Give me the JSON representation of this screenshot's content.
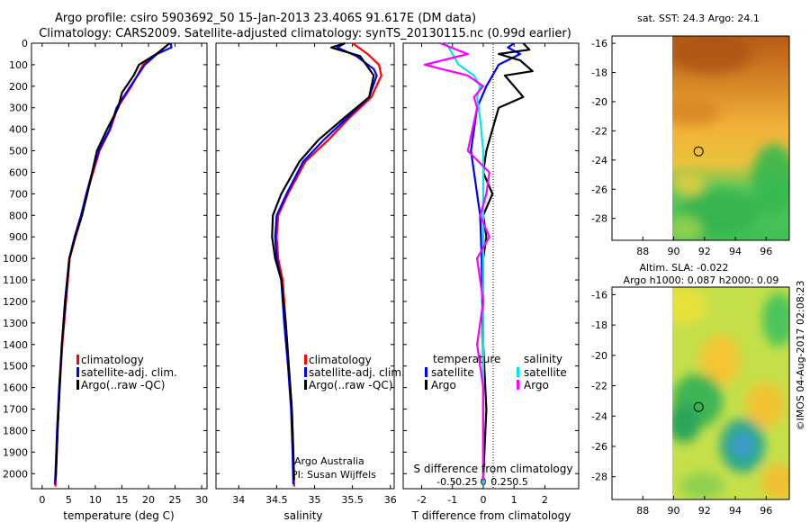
{
  "header": {
    "line1": "Argo profile: csiro 5903692_50 15-Jan-2013 23.406S 91.617E (DM data)",
    "line2": "Climatology: CARS2009. Satellite-adjusted climatology: synTS_20130115.nc (0.99d earlier)"
  },
  "credit": "©IMOS 04-Aug-2017 02:08:23",
  "colors": {
    "climatology": "#ff0000",
    "satellite": "#0000ff",
    "argo": "#000000",
    "sat_salinity": "#00e5ee",
    "argo_salinity": "#ff00ff"
  },
  "chart_data": [
    {
      "id": "temperature",
      "type": "line",
      "xlabel": "temperature (deg C)",
      "ylabel": "",
      "xlim": [
        -2,
        31
      ],
      "ylim": [
        2070,
        0
      ],
      "xticks": [
        0,
        5,
        10,
        15,
        20,
        25,
        30
      ],
      "yticks": [
        0,
        100,
        200,
        300,
        400,
        500,
        600,
        700,
        800,
        900,
        1000,
        1100,
        1200,
        1300,
        1400,
        1500,
        1600,
        1700,
        1800,
        1900,
        2000
      ],
      "legend": [
        "climatology",
        "satellite-adj. clim.",
        "Argo(..raw -QC)"
      ],
      "series": [
        {
          "name": "climatology",
          "color": "#ff0000",
          "points": [
            [
              23.8,
              0
            ],
            [
              23.5,
              10
            ],
            [
              21.5,
              50
            ],
            [
              19,
              100
            ],
            [
              16.8,
              200
            ],
            [
              14.2,
              300
            ],
            [
              12.8,
              400
            ],
            [
              10.8,
              500
            ],
            [
              9.6,
              600
            ],
            [
              8.4,
              700
            ],
            [
              7.5,
              800
            ],
            [
              6.3,
              900
            ],
            [
              5.2,
              1000
            ],
            [
              4.5,
              1200
            ],
            [
              3.8,
              1400
            ],
            [
              3.3,
              1600
            ],
            [
              2.9,
              1800
            ],
            [
              2.6,
              2000
            ],
            [
              2.5,
              2060
            ]
          ]
        },
        {
          "name": "satellite-adj. clim.",
          "color": "#0000ff",
          "points": [
            [
              24.2,
              0
            ],
            [
              24.3,
              20
            ],
            [
              21.6,
              50
            ],
            [
              19.3,
              100
            ],
            [
              16.6,
              200
            ],
            [
              14,
              300
            ],
            [
              12.7,
              400
            ],
            [
              10.6,
              500
            ],
            [
              9.4,
              600
            ],
            [
              8.3,
              700
            ],
            [
              7.3,
              800
            ],
            [
              6.1,
              900
            ],
            [
              5.1,
              1000
            ],
            [
              4.4,
              1200
            ],
            [
              3.7,
              1400
            ],
            [
              3.2,
              1600
            ],
            [
              2.8,
              1800
            ],
            [
              2.5,
              2000
            ],
            [
              2.4,
              2050
            ]
          ]
        },
        {
          "name": "Argo(..raw -QC)",
          "color": "#000000",
          "points": [
            [
              24,
              0
            ],
            [
              23,
              20
            ],
            [
              21.5,
              50
            ],
            [
              18.2,
              100
            ],
            [
              17.2,
              150
            ],
            [
              15,
              230
            ],
            [
              14.3,
              300
            ],
            [
              12.2,
              400
            ],
            [
              10.3,
              500
            ],
            [
              9.4,
              600
            ],
            [
              8.5,
              700
            ],
            [
              7.5,
              800
            ],
            [
              6.2,
              900
            ],
            [
              5.1,
              1000
            ],
            [
              4.3,
              1200
            ],
            [
              3.7,
              1400
            ],
            [
              3.3,
              1600
            ],
            [
              2.9,
              1800
            ],
            [
              2.6,
              2000
            ],
            [
              2.5,
              2030
            ]
          ]
        }
      ]
    },
    {
      "id": "salinity",
      "type": "line",
      "xlabel": "salinity",
      "ylabel": "",
      "xlim": [
        33.7,
        36.05
      ],
      "ylim": [
        2070,
        0
      ],
      "xticks": [
        34,
        34.5,
        35,
        35.5,
        36
      ],
      "yticks": [],
      "legend": [
        "climatology",
        "satellite-adj. clim.",
        "Argo(..raw -QC)"
      ],
      "series": [
        {
          "name": "climatology",
          "color": "#ff0000",
          "points": [
            [
              35.5,
              0
            ],
            [
              35.7,
              50
            ],
            [
              35.85,
              100
            ],
            [
              35.88,
              150
            ],
            [
              35.75,
              250
            ],
            [
              35.45,
              350
            ],
            [
              35.18,
              450
            ],
            [
              34.88,
              550
            ],
            [
              34.65,
              700
            ],
            [
              34.52,
              800
            ],
            [
              34.5,
              900
            ],
            [
              34.52,
              1000
            ],
            [
              34.58,
              1100
            ],
            [
              34.62,
              1300
            ],
            [
              34.66,
              1500
            ],
            [
              34.7,
              1700
            ],
            [
              34.72,
              1900
            ],
            [
              34.73,
              2060
            ]
          ]
        },
        {
          "name": "satellite-adj. clim.",
          "color": "#0000ff",
          "points": [
            [
              35.4,
              0
            ],
            [
              35.3,
              20
            ],
            [
              35.55,
              60
            ],
            [
              35.78,
              120
            ],
            [
              35.82,
              150
            ],
            [
              35.72,
              250
            ],
            [
              35.42,
              350
            ],
            [
              35.12,
              450
            ],
            [
              34.85,
              550
            ],
            [
              34.63,
              700
            ],
            [
              34.5,
              800
            ],
            [
              34.48,
              900
            ],
            [
              34.5,
              1000
            ],
            [
              34.56,
              1100
            ],
            [
              34.6,
              1300
            ],
            [
              34.65,
              1500
            ],
            [
              34.69,
              1700
            ],
            [
              34.71,
              1900
            ],
            [
              34.72,
              2050
            ]
          ]
        },
        {
          "name": "Argo(..raw -QC)",
          "color": "#000000",
          "points": [
            [
              35.4,
              0
            ],
            [
              35.22,
              20
            ],
            [
              35.6,
              60
            ],
            [
              35.78,
              150
            ],
            [
              35.72,
              250
            ],
            [
              35.38,
              350
            ],
            [
              35.05,
              450
            ],
            [
              34.8,
              550
            ],
            [
              34.56,
              700
            ],
            [
              34.45,
              800
            ],
            [
              34.44,
              900
            ],
            [
              34.48,
              1000
            ],
            [
              34.56,
              1100
            ],
            [
              34.62,
              1300
            ],
            [
              34.66,
              1500
            ],
            [
              34.7,
              1700
            ],
            [
              34.72,
              1900
            ],
            [
              34.73,
              2030
            ]
          ]
        }
      ]
    },
    {
      "id": "difference",
      "type": "line",
      "xlabel": "T difference from climatology",
      "top_label": "S difference from climatology",
      "xlim": [
        -2.6,
        3.1
      ],
      "ylim": [
        2070,
        0
      ],
      "xticks": [
        -2,
        -1,
        0,
        1,
        2
      ],
      "s_ticks": [
        {
          "pos": -1.2,
          "label": "-0.5"
        },
        {
          "pos": -0.6,
          "label": "-0.25"
        },
        {
          "pos": 0,
          "label": "0"
        },
        {
          "pos": 0.6,
          "label": "0.25"
        },
        {
          "pos": 1.2,
          "label": "0.5"
        }
      ],
      "legend": {
        "temperature": {
          "title": "temperature",
          "items": [
            "satellite",
            "Argo"
          ]
        },
        "salinity": {
          "title": "salinity",
          "items": [
            "satellite",
            "Argo"
          ]
        }
      },
      "series": [
        {
          "name": "T satellite",
          "color": "#0000ff",
          "points": [
            [
              1,
              0
            ],
            [
              0.8,
              20
            ],
            [
              1.2,
              50
            ],
            [
              0.5,
              100
            ],
            [
              0.1,
              200
            ],
            [
              -0.2,
              300
            ],
            [
              -0.3,
              400
            ],
            [
              -0.4,
              500
            ],
            [
              -0.3,
              600
            ],
            [
              -0.2,
              700
            ],
            [
              -0.1,
              800
            ],
            [
              -0.05,
              1000
            ],
            [
              0,
              1500
            ],
            [
              0,
              2050
            ]
          ]
        },
        {
          "name": "T Argo",
          "color": "#000000",
          "points": [
            [
              1.3,
              0
            ],
            [
              1.5,
              30
            ],
            [
              0.5,
              50
            ],
            [
              1.2,
              80
            ],
            [
              1.6,
              130
            ],
            [
              0.7,
              150
            ],
            [
              1,
              200
            ],
            [
              1.3,
              250
            ],
            [
              0.5,
              300
            ],
            [
              0.3,
              400
            ],
            [
              0.1,
              500
            ],
            [
              0,
              600
            ],
            [
              0.3,
              700
            ],
            [
              0,
              800
            ],
            [
              0.1,
              900
            ],
            [
              0,
              1000
            ],
            [
              0,
              1400
            ],
            [
              0.1,
              1700
            ],
            [
              0,
              2030
            ]
          ]
        },
        {
          "name": "S satellite",
          "color": "#00e5ee",
          "points": [
            [
              -1.2,
              0
            ],
            [
              -1,
              50
            ],
            [
              -0.8,
              100
            ],
            [
              -0.3,
              150
            ],
            [
              -0.1,
              200
            ],
            [
              -0.2,
              250
            ],
            [
              -0.1,
              350
            ],
            [
              0,
              500
            ],
            [
              0,
              700
            ],
            [
              0,
              1000
            ],
            [
              0,
              1500
            ],
            [
              0,
              2050
            ]
          ]
        },
        {
          "name": "S Argo",
          "color": "#ff00ff",
          "points": [
            [
              -1.4,
              0
            ],
            [
              -0.5,
              50
            ],
            [
              -1.9,
              100
            ],
            [
              -0.5,
              150
            ],
            [
              0,
              200
            ],
            [
              -0.3,
              250
            ],
            [
              -0.2,
              300
            ],
            [
              -0.5,
              500
            ],
            [
              0.2,
              600
            ],
            [
              0.1,
              700
            ],
            [
              -0.1,
              800
            ],
            [
              0.2,
              900
            ],
            [
              -0.2,
              1000
            ],
            [
              0,
              1200
            ],
            [
              -0.2,
              1400
            ],
            [
              0,
              1600
            ],
            [
              0,
              2030
            ]
          ]
        }
      ]
    },
    {
      "id": "sst_map",
      "type": "heatmap",
      "title": "sat. SST: 24.3  Argo: 24.1",
      "xlim": [
        86,
        97.5
      ],
      "ylim": [
        -29.5,
        -15.5
      ],
      "xticks": [
        88,
        90,
        92,
        94,
        96
      ],
      "yticks": [
        -16,
        -18,
        -20,
        -22,
        -24,
        -26,
        -28
      ],
      "data_xlim": [
        90,
        97.5
      ],
      "argo_position": {
        "lon": 91.617,
        "lat": -23.406
      }
    },
    {
      "id": "sla_map",
      "type": "heatmap",
      "title_line1": "Altim. SLA: -0.022",
      "title_line2": "Argo h1000: 0.087 h2000: 0.09",
      "xlim": [
        86,
        97.5
      ],
      "ylim": [
        -29.5,
        -15.5
      ],
      "xticks": [
        88,
        90,
        92,
        94,
        96
      ],
      "yticks": [
        -16,
        -18,
        -20,
        -22,
        -24,
        -26,
        -28
      ],
      "data_xlim": [
        90,
        97.5
      ],
      "argo_position": {
        "lon": 91.617,
        "lat": -23.406
      }
    }
  ],
  "annotations": {
    "credit_line1": "Argo Australia",
    "credit_line2": "PI: Susan Wijffels"
  }
}
